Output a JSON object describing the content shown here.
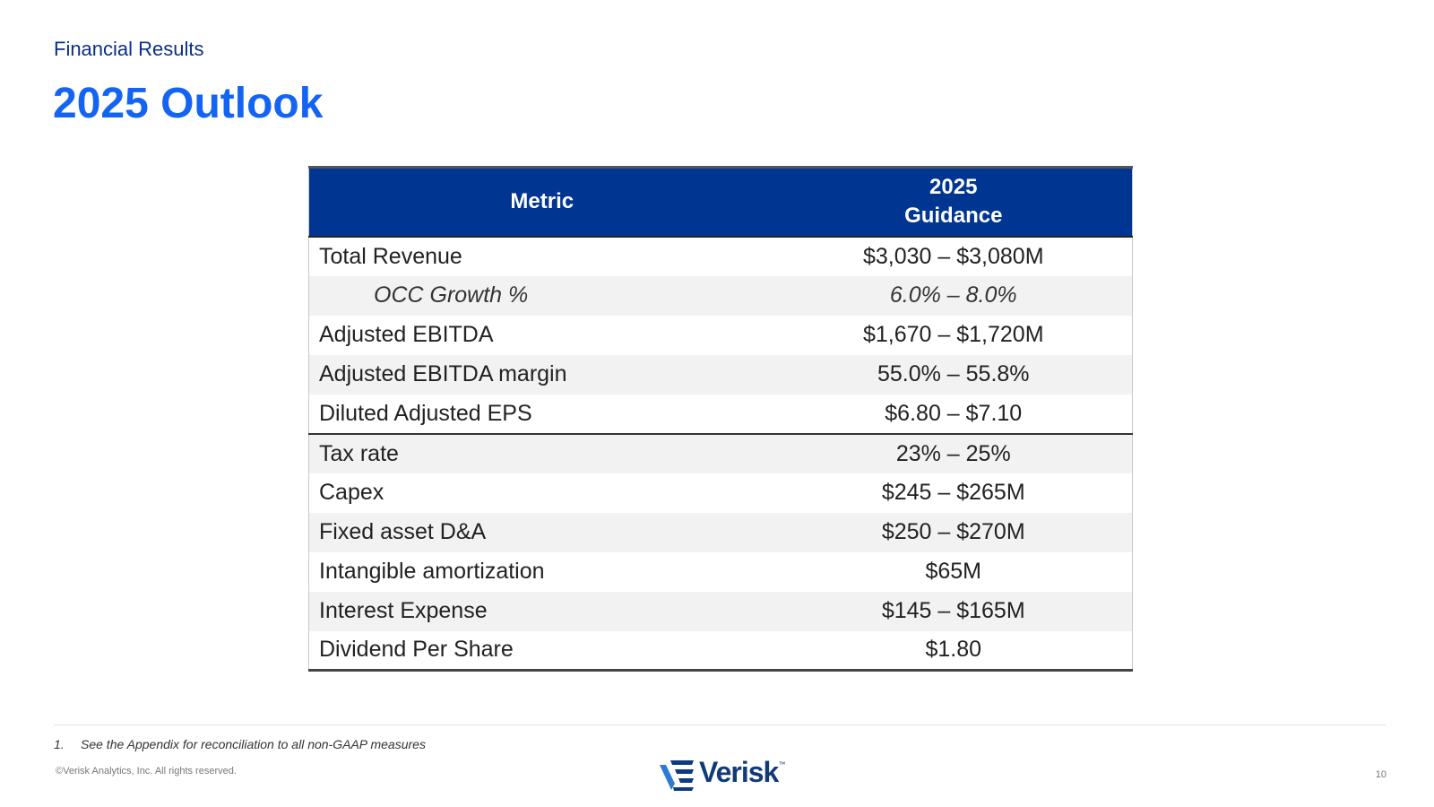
{
  "header": {
    "section_label": "Financial Results",
    "title": "2025 Outlook"
  },
  "table": {
    "headers": {
      "metric": "Metric",
      "guidance_line1": "2025",
      "guidance_line2": "Guidance"
    },
    "rows": [
      {
        "metric": "Total Revenue",
        "value": "$3,030 – $3,080M"
      },
      {
        "metric": "OCC Growth %",
        "value": "6.0% – 8.0%"
      },
      {
        "metric": "Adjusted EBITDA",
        "value": "$1,670 – $1,720M"
      },
      {
        "metric": "Adjusted EBITDA margin",
        "value": "55.0% – 55.8%"
      },
      {
        "metric": "Diluted Adjusted EPS",
        "value": "$6.80 – $7.10"
      },
      {
        "metric": "Tax rate",
        "value": "23% – 25%"
      },
      {
        "metric": "Capex",
        "value": "$245 – $265M"
      },
      {
        "metric": "Fixed asset D&A",
        "value": "$250 – $270M"
      },
      {
        "metric": "Intangible amortization",
        "value": "$65M"
      },
      {
        "metric": "Interest Expense",
        "value": "$145 – $165M"
      },
      {
        "metric": "Dividend Per Share",
        "value": "$1.80"
      }
    ]
  },
  "footer": {
    "footnote_number": "1.",
    "footnote_text": "See the Appendix for reconciliation to all non-GAAP measures",
    "copyright": "©Verisk Analytics, Inc. All rights reserved.",
    "page_number": "10",
    "logo_text": "Verisk",
    "logo_tm": "™"
  },
  "colors": {
    "header_bg": "#003591",
    "title": "#1464f4",
    "section_label": "#0a2f8a",
    "alt_row": "#f2f2f2"
  }
}
